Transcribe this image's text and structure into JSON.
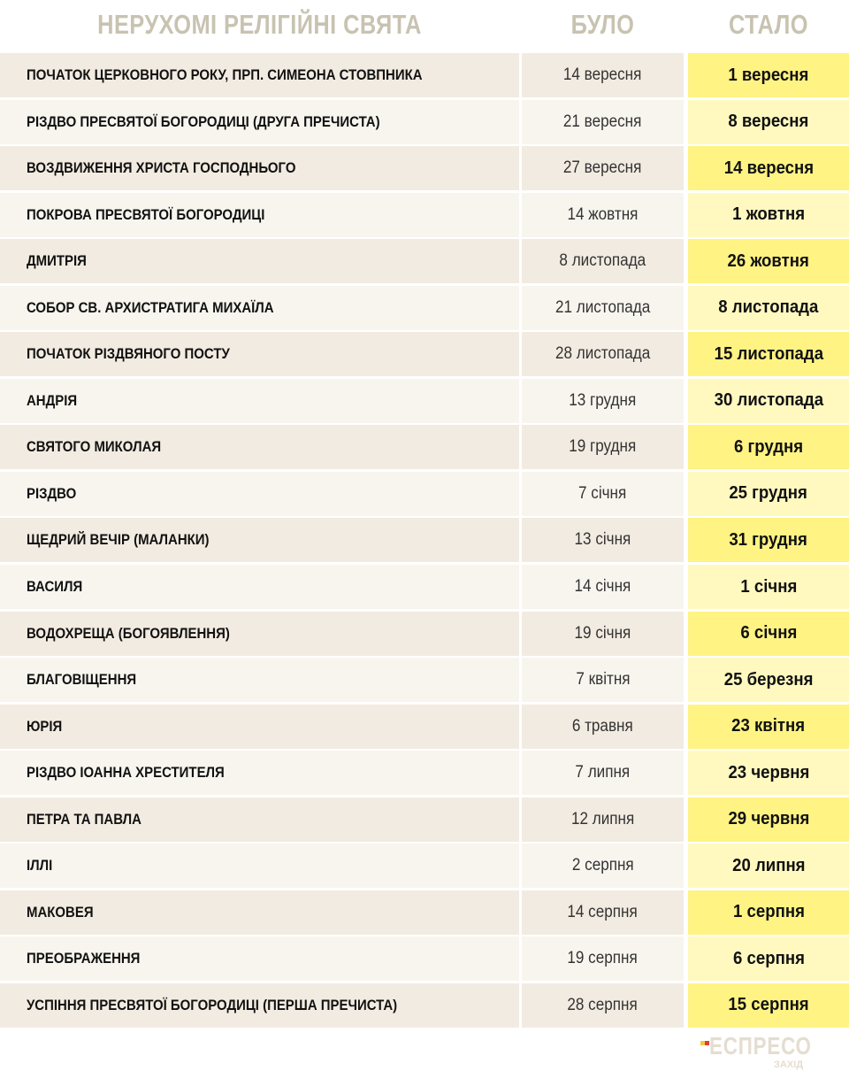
{
  "header": {
    "holiday": "НЕРУХОМІ РЕЛІГІЙНІ СВЯТА",
    "was": "БУЛО",
    "now": "СТАЛО"
  },
  "colors": {
    "row_odd": "#f2ebe1",
    "row_even": "#f8f5ef",
    "new_odd": "#fff383",
    "new_even": "#fff9c0",
    "header_text": "#c8c3b1"
  },
  "rows": [
    {
      "name": "ПОЧАТОК ЦЕРКОВНОГО РОКУ, ПРП. СИМЕОНА СТОВПНИКА",
      "was": "14 вересня",
      "now": "1 вересня"
    },
    {
      "name": "РІЗДВО ПРЕСВЯТОЇ БОГОРОДИЦІ (ДРУГА ПРЕЧИСТА)",
      "was": "21 вересня",
      "now": "8 вересня"
    },
    {
      "name": "ВОЗДВИЖЕННЯ ХРИСТА ГОСПОДНЬОГО",
      "was": "27 вересня",
      "now": "14 вересня"
    },
    {
      "name": "ПОКРОВА ПРЕСВЯТОЇ БОГОРОДИЦІ",
      "was": "14 жовтня",
      "now": "1 жовтня"
    },
    {
      "name": "ДМИТРІЯ",
      "was": "8 листопада",
      "now": "26 жовтня"
    },
    {
      "name": "СОБОР СВ. АРХИСТРАТИГА МИХАЇЛА",
      "was": "21 листопада",
      "now": "8 листопада"
    },
    {
      "name": "ПОЧАТОК РІЗДВЯНОГО ПОСТУ",
      "was": "28 листопада",
      "now": "15 листопада"
    },
    {
      "name": "АНДРІЯ",
      "was": "13 грудня",
      "now": "30 листопада"
    },
    {
      "name": "СВЯТОГО МИКОЛАЯ",
      "was": "19 грудня",
      "now": "6 грудня"
    },
    {
      "name": "РІЗДВО",
      "was": "7 січня",
      "now": "25 грудня"
    },
    {
      "name": "ЩЕДРИЙ ВЕЧІР (МАЛАНКИ)",
      "was": "13 січня",
      "now": "31 грудня"
    },
    {
      "name": "ВАСИЛЯ",
      "was": "14 січня",
      "now": "1 січня"
    },
    {
      "name": "ВОДОХРЕЩА (БОГОЯВЛЕННЯ)",
      "was": "19 січня",
      "now": "6 січня"
    },
    {
      "name": "БЛАГОВІЩЕННЯ",
      "was": "7 квітня",
      "now": "25 березня"
    },
    {
      "name": "ЮРІЯ",
      "was": "6 травня",
      "now": "23 квітня"
    },
    {
      "name": "РІЗДВО ІОАННА ХРЕСТИТЕЛЯ",
      "was": "7 липня",
      "now": "23 червня"
    },
    {
      "name": "ПЕТРА ТА ПАВЛА",
      "was": "12 липня",
      "now": "29 червня"
    },
    {
      "name": "ІЛЛІ",
      "was": "2 серпня",
      "now": "20 липня"
    },
    {
      "name": "МАКОВЕЯ",
      "was": "14 серпня",
      "now": "1 серпня"
    },
    {
      "name": "ПРЕОБРАЖЕННЯ",
      "was": "19 серпня",
      "now": "6 серпня"
    },
    {
      "name": "УСПІННЯ ПРЕСВЯТОЇ БОГОРОДИЦІ (ПЕРША ПРЕЧИСТА)",
      "was": "28 серпня",
      "now": "15 серпня"
    }
  ],
  "logo": {
    "word": "ЕСПРЕСО",
    "sub": "ЗАХІД"
  }
}
